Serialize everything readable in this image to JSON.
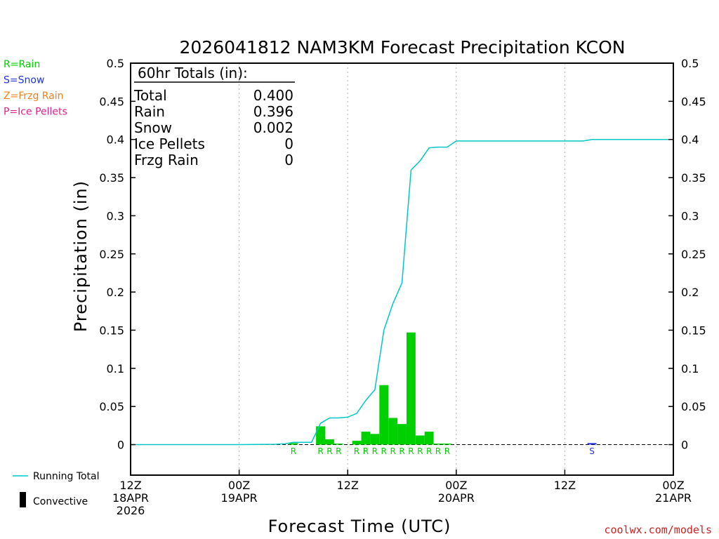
{
  "colors": {
    "rain": "#00d000",
    "snow": "#2233dd",
    "frzg": "#f08020",
    "ice": "#e0208a",
    "running": "#00c8c8",
    "credit": "#d02020",
    "grid": "#b0b0b0"
  },
  "legend": {
    "ptype": [
      {
        "label": "R=Rain",
        "color_key": "rain"
      },
      {
        "label": "S=Snow",
        "color_key": "snow"
      },
      {
        "label": "Z=Frzg Rain",
        "color_key": "frzg"
      },
      {
        "label": "P=Ice Pellets",
        "color_key": "ice"
      }
    ],
    "running_total_label": "Running Total",
    "convective_label": "Convective"
  },
  "totals": {
    "header": "60hr Totals (in):",
    "rows": [
      {
        "label": "Total",
        "value": "0.400"
      },
      {
        "label": "Rain",
        "value": "0.396"
      },
      {
        "label": "Snow",
        "value": "0.002"
      },
      {
        "label": "Ice Pellets",
        "value": "0"
      },
      {
        "label": "Frzg Rain",
        "value": "0"
      }
    ]
  },
  "credit": "coolwx.com/models",
  "chart_data": {
    "type": "bar",
    "title": "2026041812 NAM3KM Forecast Precipitation KCON",
    "xlabel": "Forecast Time (UTC)",
    "ylabel": "Precipitation (in)",
    "ylim": [
      -0.04,
      0.5
    ],
    "xlim": [
      0,
      60
    ],
    "yticks": [
      0,
      0.05,
      0.1,
      0.15,
      0.2,
      0.25,
      0.3,
      0.35,
      0.4,
      0.45,
      0.5
    ],
    "ytick_labels": [
      "0",
      "0.05",
      "0.1",
      "0.15",
      "0.2",
      "0.25",
      "0.3",
      "0.35",
      "0.4",
      "0.45",
      "0.5"
    ],
    "xticks": [
      {
        "hour": 0,
        "lines": [
          "12Z",
          "18APR",
          "2026"
        ]
      },
      {
        "hour": 12,
        "lines": [
          "00Z",
          "19APR"
        ]
      },
      {
        "hour": 24,
        "lines": [
          "12Z"
        ]
      },
      {
        "hour": 36,
        "lines": [
          "00Z",
          "20APR"
        ]
      },
      {
        "hour": 48,
        "lines": [
          "12Z"
        ]
      },
      {
        "hour": 60,
        "lines": [
          "00Z",
          "21APR"
        ]
      }
    ],
    "grid_hours": [
      12,
      24,
      36,
      48
    ],
    "bar_width_hours": 1,
    "series": [
      {
        "name": "Rain",
        "type_code": "R",
        "color_key": "rain",
        "hours": [
          18,
          21,
          22,
          23,
          25,
          26,
          27,
          28,
          29,
          30,
          31,
          32,
          33,
          34,
          35
        ],
        "values": [
          0.002,
          0.024,
          0.007,
          0.001,
          0.005,
          0.017,
          0.014,
          0.078,
          0.035,
          0.027,
          0.147,
          0.012,
          0.017,
          0.001,
          0.001
        ]
      },
      {
        "name": "Snow",
        "type_code": "S",
        "color_key": "snow",
        "hours": [
          51
        ],
        "values": [
          0.002
        ]
      }
    ],
    "running_total": {
      "name": "Running Total",
      "hours": [
        0,
        12,
        16,
        17,
        18,
        19,
        20,
        21,
        22,
        23,
        24,
        25,
        26,
        27,
        28,
        29,
        30,
        31,
        32,
        33,
        34,
        35,
        36,
        50,
        51,
        60
      ],
      "values": [
        0,
        0,
        0.0005,
        0.001,
        0.003,
        0.003,
        0.003,
        0.028,
        0.035,
        0.035,
        0.036,
        0.041,
        0.058,
        0.072,
        0.15,
        0.185,
        0.212,
        0.36,
        0.372,
        0.389,
        0.39,
        0.39,
        0.398,
        0.398,
        0.4,
        0.4
      ]
    }
  }
}
